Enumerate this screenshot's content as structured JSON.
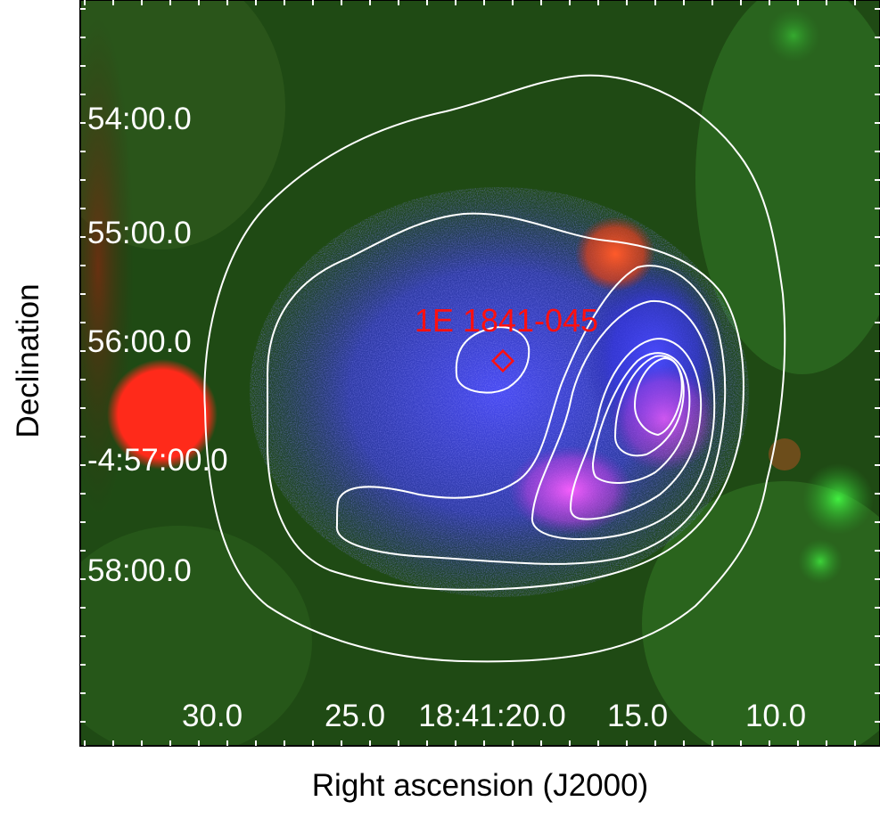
{
  "figure": {
    "ylabel": "Declination",
    "xlabel": "Right ascension  (J2000)",
    "source_label": "1E 1841-045",
    "dec_ticks": [
      "54:00.0",
      "55:00.0",
      "56:00.0",
      "-4:57:00.0",
      "58:00.0"
    ],
    "ra_ticks": [
      "30.0",
      "25.0",
      "18:41:20.0",
      "15.0",
      "10.0"
    ],
    "colors": {
      "contour": "#ffffff",
      "source_marker": "#ff1010",
      "tick_label": "#ffffff",
      "bg_green": "#1f4f14",
      "emission_blue": "#3c3cff",
      "emission_red": "#ff2a1a",
      "emission_magenta": "#ff50ff"
    }
  }
}
